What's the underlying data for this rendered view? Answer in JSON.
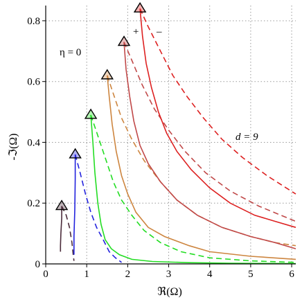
{
  "chart_data": {
    "type": "line",
    "title": "",
    "xlabel": "ℜ(Ω)",
    "ylabel": "-ℑ(Ω)",
    "xlim": [
      0,
      6.1
    ],
    "ylim": [
      0,
      0.85
    ],
    "xticks": [
      0,
      1,
      2,
      3,
      4,
      5,
      6
    ],
    "yticks": [
      0,
      0.2,
      0.4,
      0.6,
      0.8
    ],
    "grid": true,
    "legend": "none",
    "annotations": {
      "eta": "η = 0",
      "d": "d = 9",
      "plus": "+",
      "minus": "–"
    },
    "series": [
      {
        "color": "#4a2a3a",
        "solid": [
          [
            0.39,
            0.19
          ],
          [
            0.39,
            0.15
          ],
          [
            0.37,
            0.1
          ],
          [
            0.36,
            0.06
          ],
          [
            0.36,
            0.04
          ]
        ],
        "dashed": [
          [
            0.39,
            0.19
          ],
          [
            0.5,
            0.16
          ],
          [
            0.58,
            0.12
          ],
          [
            0.64,
            0.07
          ],
          [
            0.67,
            0.03
          ],
          [
            0.69,
            0.01
          ]
        ]
      },
      {
        "color": "#2222dd",
        "solid": [
          [
            0.72,
            0.36
          ],
          [
            0.72,
            0.28
          ],
          [
            0.71,
            0.18
          ],
          [
            0.69,
            0.09
          ],
          [
            0.69,
            0.03
          ]
        ],
        "dashed": [
          [
            0.72,
            0.36
          ],
          [
            0.84,
            0.3
          ],
          [
            0.97,
            0.23
          ],
          [
            1.1,
            0.17
          ],
          [
            1.24,
            0.12
          ],
          [
            1.4,
            0.08
          ],
          [
            1.55,
            0.04
          ],
          [
            1.7,
            0.02
          ],
          [
            1.85,
            0.005
          ]
        ]
      },
      {
        "color": "#22dd22",
        "solid": [
          [
            1.1,
            0.49
          ],
          [
            1.15,
            0.4
          ],
          [
            1.2,
            0.3
          ],
          [
            1.27,
            0.2
          ],
          [
            1.35,
            0.13
          ],
          [
            1.45,
            0.08
          ],
          [
            1.6,
            0.05
          ],
          [
            1.8,
            0.03
          ],
          [
            2.1,
            0.015
          ],
          [
            2.6,
            0.008
          ],
          [
            3.5,
            0.004
          ],
          [
            4.5,
            0.002
          ],
          [
            6.1,
            0.001
          ]
        ],
        "dashed": [
          [
            1.1,
            0.49
          ],
          [
            1.25,
            0.43
          ],
          [
            1.45,
            0.35
          ],
          [
            1.65,
            0.27
          ],
          [
            1.85,
            0.21
          ],
          [
            2.1,
            0.16
          ],
          [
            2.4,
            0.11
          ],
          [
            2.8,
            0.07
          ],
          [
            3.3,
            0.04
          ],
          [
            4.0,
            0.02
          ],
          [
            5.0,
            0.01
          ],
          [
            6.1,
            0.005
          ]
        ]
      },
      {
        "color": "#cd853f",
        "solid": [
          [
            1.5,
            0.62
          ],
          [
            1.55,
            0.55
          ],
          [
            1.62,
            0.46
          ],
          [
            1.72,
            0.37
          ],
          [
            1.85,
            0.29
          ],
          [
            2.0,
            0.23
          ],
          [
            2.2,
            0.17
          ],
          [
            2.5,
            0.12
          ],
          [
            2.9,
            0.09
          ],
          [
            3.5,
            0.06
          ],
          [
            4.0,
            0.04
          ],
          [
            5.0,
            0.025
          ],
          [
            6.1,
            0.015
          ]
        ],
        "dashed": [
          [
            1.5,
            0.62
          ],
          [
            1.65,
            0.56
          ],
          [
            1.85,
            0.48
          ],
          [
            2.1,
            0.41
          ],
          [
            2.4,
            0.34
          ],
          [
            2.8,
            0.27
          ],
          [
            3.2,
            0.21
          ],
          [
            3.7,
            0.16
          ],
          [
            4.3,
            0.12
          ],
          [
            5.0,
            0.09
          ],
          [
            5.6,
            0.07
          ],
          [
            6.1,
            0.06
          ]
        ]
      },
      {
        "color": "#c04848",
        "solid": [
          [
            1.91,
            0.73
          ],
          [
            1.96,
            0.64
          ],
          [
            2.05,
            0.55
          ],
          [
            2.15,
            0.47
          ],
          [
            2.3,
            0.39
          ],
          [
            2.5,
            0.33
          ],
          [
            2.8,
            0.27
          ],
          [
            3.2,
            0.21
          ],
          [
            3.7,
            0.16
          ],
          [
            4.3,
            0.12
          ],
          [
            5.0,
            0.09
          ],
          [
            5.6,
            0.07
          ],
          [
            6.1,
            0.05
          ]
        ],
        "dashed": [
          [
            1.91,
            0.73
          ],
          [
            2.1,
            0.67
          ],
          [
            2.35,
            0.59
          ],
          [
            2.65,
            0.51
          ],
          [
            3.0,
            0.44
          ],
          [
            3.4,
            0.37
          ],
          [
            3.9,
            0.3
          ],
          [
            4.5,
            0.24
          ],
          [
            5.2,
            0.19
          ],
          [
            6.1,
            0.14
          ]
        ]
      },
      {
        "color": "#dd2020",
        "solid": [
          [
            2.3,
            0.84
          ],
          [
            2.36,
            0.75
          ],
          [
            2.45,
            0.66
          ],
          [
            2.58,
            0.58
          ],
          [
            2.75,
            0.5
          ],
          [
            2.95,
            0.43
          ],
          [
            3.2,
            0.37
          ],
          [
            3.55,
            0.31
          ],
          [
            4.0,
            0.25
          ],
          [
            4.5,
            0.2
          ],
          [
            5.1,
            0.16
          ],
          [
            5.6,
            0.14
          ],
          [
            6.1,
            0.12
          ]
        ],
        "dashed": [
          [
            2.3,
            0.84
          ],
          [
            2.5,
            0.78
          ],
          [
            2.8,
            0.7
          ],
          [
            3.1,
            0.62
          ],
          [
            3.45,
            0.55
          ],
          [
            3.85,
            0.48
          ],
          [
            4.3,
            0.41
          ],
          [
            4.8,
            0.35
          ],
          [
            5.4,
            0.29
          ],
          [
            6.1,
            0.23
          ]
        ]
      }
    ]
  }
}
